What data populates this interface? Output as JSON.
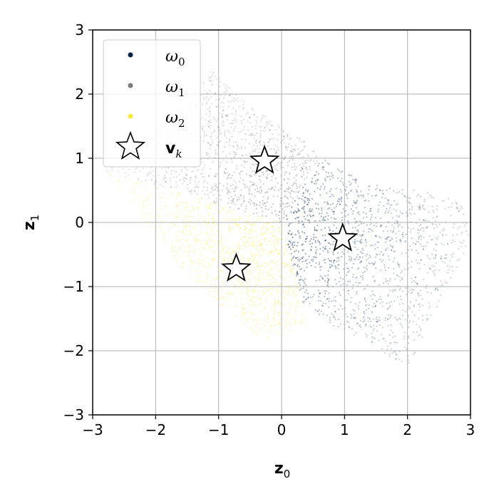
{
  "chart_data": {
    "type": "scatter",
    "title": "",
    "xlabel": "z",
    "xlabel_sub": "0",
    "ylabel": "z",
    "ylabel_sub": "1",
    "xlim": [
      -3,
      3
    ],
    "ylim": [
      -3,
      3
    ],
    "xticks": [
      -3,
      -2,
      -1,
      0,
      1,
      2,
      3
    ],
    "yticks": [
      -3,
      -2,
      -1,
      0,
      1,
      2,
      3
    ],
    "xtick_labels": [
      "−3",
      "−2",
      "−1",
      "0",
      "1",
      "2",
      "3"
    ],
    "ytick_labels": [
      "−3",
      "−2",
      "−1",
      "0",
      "1",
      "2",
      "3"
    ],
    "grid": true,
    "legend_position": "top-left",
    "series": [
      {
        "name": "ω",
        "name_sub": "0",
        "color": "#00204c",
        "region": [
          [
            0,
            0
          ],
          [
            0.65,
            1.05
          ],
          [
            1.3,
            0.6
          ],
          [
            2.2,
            0.5
          ],
          [
            2.9,
            0.3
          ],
          [
            3.0,
            -0.4
          ],
          [
            2.6,
            -1.0
          ],
          [
            2.3,
            -1.7
          ],
          [
            2.0,
            -2.25
          ],
          [
            1.4,
            -1.9
          ],
          [
            0.8,
            -1.6
          ],
          [
            0.35,
            -1.3
          ]
        ],
        "summary": "dense cloud with z0 > 0, right-hand wedge"
      },
      {
        "name": "ω",
        "name_sub": "1",
        "color": "#7c7b78",
        "region": [
          [
            0,
            0
          ],
          [
            -2.8,
            0.8
          ],
          [
            -2.2,
            1.1
          ],
          [
            -1.6,
            2.0
          ],
          [
            -1.1,
            2.4
          ],
          [
            -0.5,
            1.8
          ],
          [
            0.3,
            1.3
          ],
          [
            0.65,
            1.05
          ]
        ],
        "summary": "cloud in upper half, above the boundary lines from the origin"
      },
      {
        "name": "ω",
        "name_sub": "2",
        "color": "#fee838",
        "region": [
          [
            0,
            0
          ],
          [
            -2.8,
            0.8
          ],
          [
            -2.3,
            0.2
          ],
          [
            -1.8,
            -0.5
          ],
          [
            -1.2,
            -1.1
          ],
          [
            -0.6,
            -1.6
          ],
          [
            -0.3,
            -1.85
          ],
          [
            0.4,
            -1.7
          ],
          [
            0.35,
            -1.3
          ]
        ],
        "summary": "cloud in lower-left, below the boundary lines from the origin"
      }
    ],
    "markers": {
      "name": "v",
      "name_sub": "k",
      "points": [
        {
          "x": 0.97,
          "y": -0.25
        },
        {
          "x": -0.27,
          "y": 0.96
        },
        {
          "x": -0.72,
          "y": -0.72
        }
      ]
    }
  }
}
